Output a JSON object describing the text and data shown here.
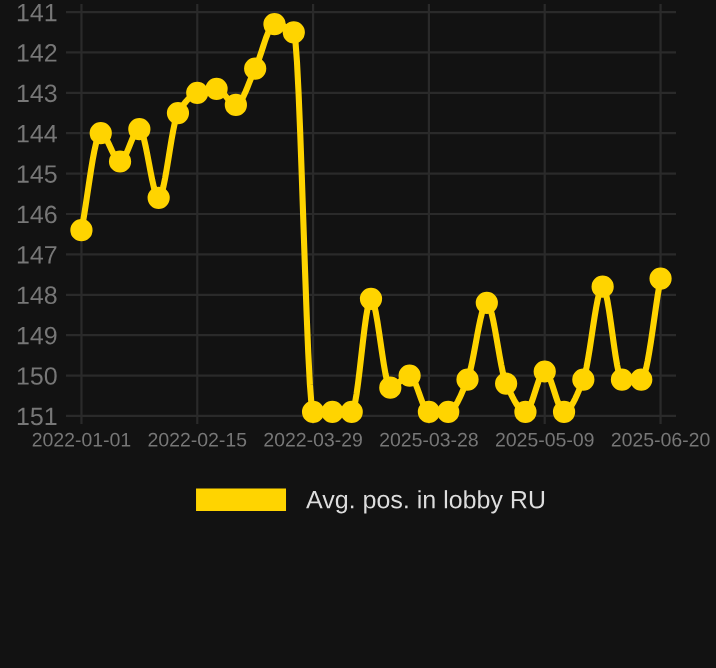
{
  "chart_data": {
    "type": "line",
    "categories": [
      "2022-01-01",
      null,
      null,
      null,
      null,
      null,
      "2022-02-15",
      null,
      null,
      null,
      null,
      null,
      "2022-03-29",
      null,
      null,
      null,
      null,
      null,
      "2025-03-28",
      null,
      null,
      null,
      null,
      null,
      "2025-05-09",
      null,
      null,
      null,
      null,
      null,
      "2025-06-20"
    ],
    "series": [
      {
        "name": "Avg. pos. in lobby RU",
        "color": "#ffd400",
        "values": [
          146.4,
          144.0,
          144.7,
          143.9,
          145.6,
          143.5,
          143.0,
          142.9,
          143.3,
          142.4,
          141.3,
          141.5,
          150.9,
          150.9,
          150.9,
          148.1,
          150.3,
          150.0,
          150.9,
          150.9,
          150.1,
          148.2,
          150.2,
          150.9,
          149.9,
          150.9,
          150.1,
          147.8,
          150.1,
          150.1,
          147.6
        ]
      }
    ],
    "ylim": [
      151.2,
      140.8
    ],
    "yticks": [
      141,
      142,
      143,
      144,
      145,
      146,
      147,
      148,
      149,
      150,
      151
    ],
    "grid": true,
    "legend": "bottom",
    "marker": "circle",
    "line_style": "solid"
  }
}
